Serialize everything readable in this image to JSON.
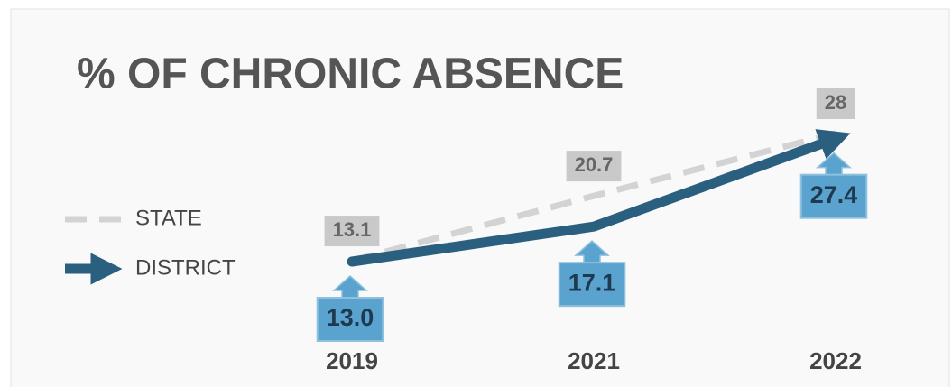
{
  "chart_data": {
    "type": "line",
    "title": "% OF CHRONIC ABSENCE",
    "categories": [
      "2019",
      "2021",
      "2022"
    ],
    "series": [
      {
        "name": "STATE",
        "color": "#d3d3d3",
        "values": [
          13.1,
          20.7,
          28
        ]
      },
      {
        "name": "DISTRICT",
        "color": "#2a5f80",
        "values": [
          13.0,
          17.1,
          27.4
        ],
        "value_labels": [
          "13.0",
          "17.1",
          "27.4"
        ]
      }
    ]
  }
}
